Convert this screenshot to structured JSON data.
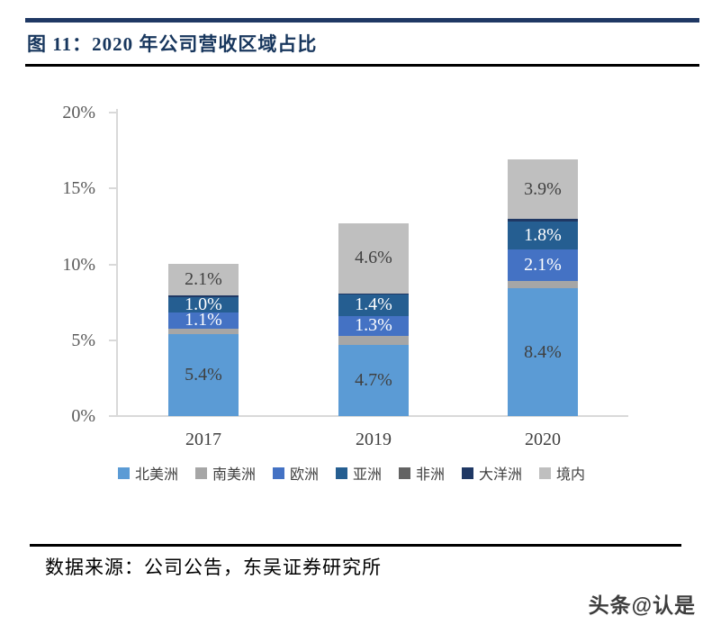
{
  "title": {
    "text": "图 11：2020 年公司营收区域占比"
  },
  "chart_data": {
    "type": "bar",
    "subtype": "stacked",
    "title": "2020 年公司营收区域占比",
    "categories": [
      "2017",
      "2019",
      "2020"
    ],
    "unit": "%",
    "ylim": [
      0,
      20
    ],
    "yticks": [
      "0%",
      "5%",
      "10%",
      "15%",
      "20%"
    ],
    "grid": false,
    "legend_position": "bottom",
    "series": [
      {
        "name": "北美洲",
        "color": "#5B9BD5",
        "values": [
          5.4,
          4.7,
          8.4
        ],
        "labels": [
          "5.4%",
          "4.7%",
          "8.4%"
        ],
        "label_style": "dark"
      },
      {
        "name": "南美洲",
        "color": "#A6A6A6",
        "values": [
          0.35,
          0.6,
          0.5
        ],
        "labels": [
          "",
          "",
          ""
        ],
        "label_style": "dark"
      },
      {
        "name": "欧洲",
        "color": "#4472C4",
        "values": [
          1.1,
          1.3,
          2.1
        ],
        "labels": [
          "1.1%",
          "1.3%",
          "2.1%"
        ],
        "label_style": "light"
      },
      {
        "name": "亚洲",
        "color": "#255E91",
        "values": [
          1.0,
          1.4,
          1.8
        ],
        "labels": [
          "1.0%",
          "1.4%",
          "1.8%"
        ],
        "label_style": "light"
      },
      {
        "name": "非洲",
        "color": "#636363",
        "values": [
          0,
          0,
          0
        ],
        "labels": [
          "",
          "",
          ""
        ],
        "label_style": "light"
      },
      {
        "name": "大洋洲",
        "color": "#1F3864",
        "values": [
          0.1,
          0.1,
          0.2
        ],
        "labels": [
          "",
          "",
          ""
        ],
        "label_style": "light"
      },
      {
        "name": "境内",
        "color": "#BFBFBF",
        "values": [
          2.1,
          4.6,
          3.9
        ],
        "labels": [
          "2.1%",
          "4.6%",
          "3.9%"
        ],
        "label_style": "dark"
      }
    ],
    "bar_totals": [
      10.05,
      12.7,
      16.9
    ],
    "label_colors": {
      "dark": "#404040",
      "light": "#FFFFFF"
    }
  },
  "footer": {
    "source": "数据来源：公司公告，东吴证券研究所"
  },
  "watermark": {
    "text": "头条@认是"
  }
}
